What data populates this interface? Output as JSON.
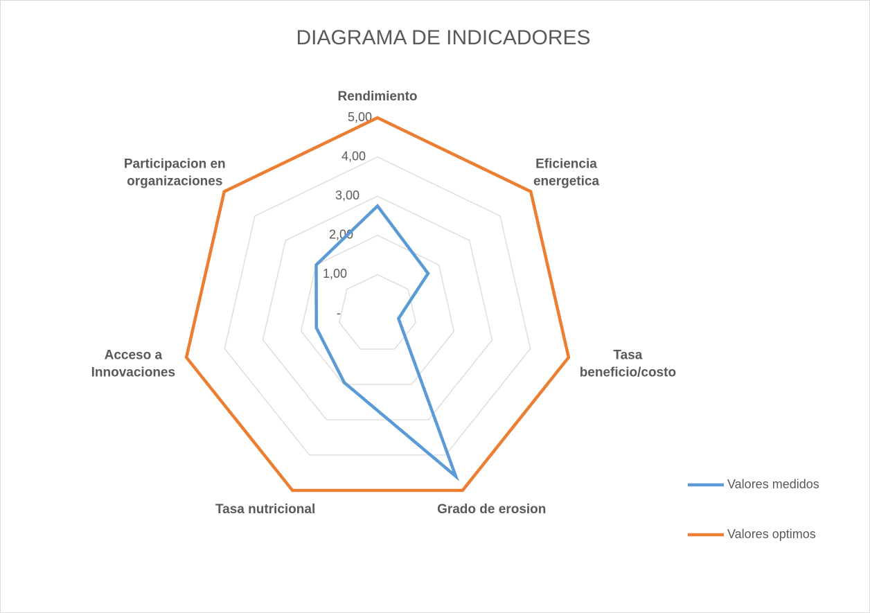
{
  "chart_data": {
    "type": "radar",
    "title": "DIAGRAMA DE INDICADORES",
    "categories": [
      "Rendimiento",
      "Eficiencia\nenergetica",
      "Tasa\nbeneficio/costo",
      "Grado de erosion",
      "Tasa nutricional",
      "Acceso a\nInnovaciones",
      "Participacion en\norganizaciones"
    ],
    "series": [
      {
        "name": "Valores medidos",
        "color": "#5b9bd5",
        "values": [
          2.75,
          1.65,
          0.55,
          4.6,
          1.95,
          1.6,
          2.0
        ]
      },
      {
        "name": "Valores optimos",
        "color": "#ed7d31",
        "values": [
          5,
          5,
          5,
          5,
          5,
          5,
          5
        ]
      }
    ],
    "ylim": [
      0,
      5
    ],
    "yticks": [
      {
        "value": 0,
        "label": "-"
      },
      {
        "value": 1,
        "label": "1,00"
      },
      {
        "value": 2,
        "label": "2,00"
      },
      {
        "value": 3,
        "label": "3,00"
      },
      {
        "value": 4,
        "label": "4,00"
      },
      {
        "value": 5,
        "label": "5,00"
      }
    ],
    "grid": true,
    "legend": "right"
  }
}
